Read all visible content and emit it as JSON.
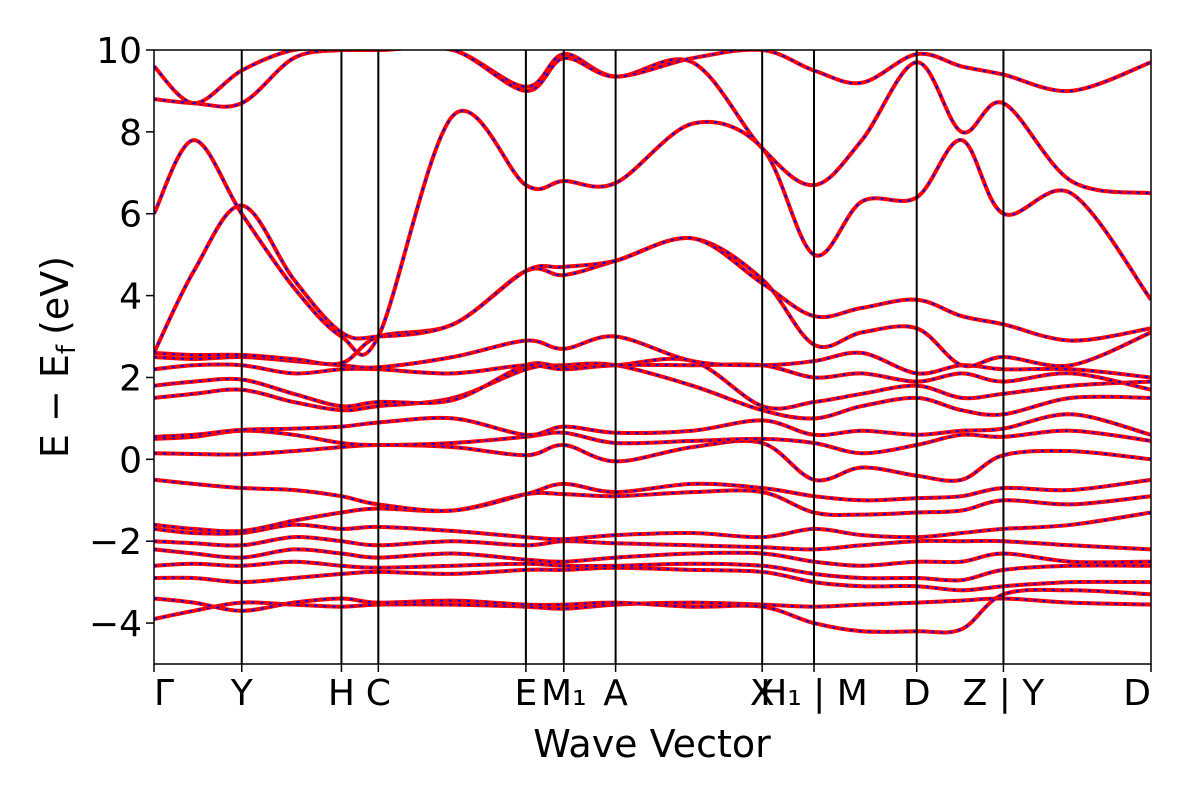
{
  "chart_data": {
    "type": "line",
    "xlabel": "Wave Vector",
    "ylabel": "E − E",
    "ylabel_sub": "f",
    "ylabel_unit": "(eV)",
    "ylim": [
      -5,
      10
    ],
    "yticks": [
      -4,
      -2,
      0,
      2,
      4,
      6,
      8,
      10
    ],
    "ytick_labels": [
      "−4",
      "−2",
      "0",
      "2",
      "4",
      "6",
      "8",
      "10"
    ],
    "xlim": [
      0,
      1
    ],
    "kpoint_labels": [
      {
        "x": 0.0,
        "label": "Γ"
      },
      {
        "x": 0.088,
        "label": "Y"
      },
      {
        "x": 0.188,
        "label": "H"
      },
      {
        "x": 0.225,
        "label": "C"
      },
      {
        "x": 0.373,
        "label": "E"
      },
      {
        "x": 0.411,
        "label": "M₁"
      },
      {
        "x": 0.463,
        "label": "A"
      },
      {
        "x": 0.61,
        "label": "X"
      },
      {
        "x": 0.662,
        "label": "H₁ | M"
      },
      {
        "x": 0.765,
        "label": "D"
      },
      {
        "x": 0.852,
        "label": "Z | Y"
      },
      {
        "x": 1.0,
        "label": "D"
      }
    ],
    "vlines": [
      0.088,
      0.188,
      0.225,
      0.373,
      0.411,
      0.463,
      0.61,
      0.662,
      0.765,
      0.852
    ],
    "grid": false,
    "styles": {
      "line_color": "#ff0000",
      "overlay_color": "#0000ff"
    },
    "bands": [
      {
        "x": [
          0,
          0.04,
          0.088,
          0.14,
          0.188,
          0.225,
          0.3,
          0.373,
          0.411,
          0.463,
          0.54,
          0.61,
          0.662,
          0.71,
          0.765,
          0.81,
          0.852,
          0.92,
          1.0
        ],
        "y": [
          -3.9,
          -3.7,
          -3.5,
          -3.55,
          -3.6,
          -3.55,
          -3.55,
          -3.6,
          -3.65,
          -3.55,
          -3.5,
          -3.55,
          -3.6,
          -3.55,
          -3.5,
          -3.45,
          -3.4,
          -3.5,
          -3.55
        ]
      },
      {
        "x": [
          0,
          0.04,
          0.088,
          0.14,
          0.188,
          0.225,
          0.3,
          0.373,
          0.411,
          0.463,
          0.54,
          0.61,
          0.662,
          0.71,
          0.765,
          0.81,
          0.852,
          0.92,
          1.0
        ],
        "y": [
          -3.4,
          -3.5,
          -3.7,
          -3.5,
          -3.4,
          -3.5,
          -3.45,
          -3.55,
          -3.55,
          -3.5,
          -3.6,
          -3.6,
          -4.0,
          -4.2,
          -4.2,
          -4.15,
          -3.3,
          -3.2,
          -3.3
        ]
      },
      {
        "x": [
          0,
          0.04,
          0.088,
          0.14,
          0.188,
          0.225,
          0.3,
          0.373,
          0.411,
          0.463,
          0.54,
          0.61,
          0.662,
          0.71,
          0.765,
          0.81,
          0.852,
          0.92,
          1.0
        ],
        "y": [
          -2.9,
          -2.9,
          -3.0,
          -2.9,
          -2.8,
          -2.75,
          -2.8,
          -2.7,
          -2.7,
          -2.65,
          -2.7,
          -2.75,
          -3.0,
          -3.1,
          -3.1,
          -3.2,
          -3.1,
          -3.0,
          -3.0
        ]
      },
      {
        "x": [
          0,
          0.04,
          0.088,
          0.14,
          0.188,
          0.225,
          0.3,
          0.373,
          0.411,
          0.463,
          0.54,
          0.61,
          0.662,
          0.71,
          0.765,
          0.81,
          0.852,
          0.92,
          1.0
        ],
        "y": [
          -2.6,
          -2.55,
          -2.6,
          -2.5,
          -2.6,
          -2.65,
          -2.6,
          -2.55,
          -2.6,
          -2.6,
          -2.55,
          -2.6,
          -2.8,
          -2.9,
          -2.9,
          -2.95,
          -2.7,
          -2.6,
          -2.6
        ]
      },
      {
        "x": [
          0,
          0.04,
          0.088,
          0.14,
          0.188,
          0.225,
          0.3,
          0.373,
          0.411,
          0.463,
          0.54,
          0.61,
          0.662,
          0.71,
          0.765,
          0.81,
          0.852,
          0.92,
          1.0
        ],
        "y": [
          -2.2,
          -2.3,
          -2.4,
          -2.2,
          -2.3,
          -2.4,
          -2.3,
          -2.45,
          -2.5,
          -2.4,
          -2.3,
          -2.3,
          -2.5,
          -2.6,
          -2.5,
          -2.5,
          -2.3,
          -2.5,
          -2.5
        ]
      },
      {
        "x": [
          0,
          0.04,
          0.088,
          0.14,
          0.188,
          0.225,
          0.3,
          0.373,
          0.411,
          0.463,
          0.54,
          0.61,
          0.662,
          0.71,
          0.765,
          0.81,
          0.852,
          0.92,
          1.0
        ],
        "y": [
          -2.0,
          -2.05,
          -2.1,
          -1.9,
          -2.0,
          -2.1,
          -2.0,
          -2.1,
          -2.0,
          -2.05,
          -2.1,
          -2.15,
          -2.2,
          -2.1,
          -2.0,
          -2.0,
          -2.0,
          -2.1,
          -2.2
        ]
      },
      {
        "x": [
          0,
          0.04,
          0.088,
          0.14,
          0.188,
          0.225,
          0.3,
          0.373,
          0.411,
          0.463,
          0.54,
          0.61,
          0.662,
          0.71,
          0.765,
          0.81,
          0.852,
          0.92,
          1.0
        ],
        "y": [
          -1.7,
          -1.8,
          -1.8,
          -1.6,
          -1.7,
          -1.65,
          -1.75,
          -1.9,
          -1.95,
          -1.85,
          -1.8,
          -1.9,
          -1.7,
          -1.85,
          -1.9,
          -1.8,
          -1.7,
          -1.6,
          -1.3
        ]
      },
      {
        "x": [
          0,
          0.04,
          0.088,
          0.14,
          0.188,
          0.225,
          0.3,
          0.373,
          0.411,
          0.463,
          0.54,
          0.61,
          0.662,
          0.71,
          0.765,
          0.81,
          0.852,
          0.92,
          1.0
        ],
        "y": [
          -1.6,
          -1.7,
          -1.75,
          -1.5,
          -1.3,
          -1.2,
          -1.25,
          -0.85,
          -0.85,
          -0.9,
          -0.8,
          -0.8,
          -1.3,
          -1.35,
          -1.3,
          -1.25,
          -1.0,
          -1.1,
          -0.9
        ]
      },
      {
        "x": [
          0,
          0.04,
          0.088,
          0.14,
          0.188,
          0.225,
          0.3,
          0.373,
          0.411,
          0.463,
          0.54,
          0.61,
          0.662,
          0.71,
          0.765,
          0.81,
          0.852,
          0.92,
          1.0
        ],
        "y": [
          -0.5,
          -0.6,
          -0.7,
          -0.75,
          -0.9,
          -1.1,
          -1.25,
          -0.85,
          -0.6,
          -0.8,
          -0.6,
          -0.7,
          -0.9,
          -1.0,
          -0.95,
          -0.9,
          -0.7,
          -0.75,
          -0.5
        ]
      },
      {
        "x": [
          0,
          0.04,
          0.088,
          0.14,
          0.188,
          0.225,
          0.3,
          0.373,
          0.411,
          0.463,
          0.54,
          0.61,
          0.662,
          0.71,
          0.765,
          0.81,
          0.852,
          0.92,
          1.0
        ],
        "y": [
          0.15,
          0.13,
          0.12,
          0.2,
          0.3,
          0.35,
          0.3,
          0.1,
          0.35,
          -0.05,
          0.3,
          0.4,
          -0.5,
          -0.2,
          -0.4,
          -0.5,
          0.1,
          0.2,
          0.0
        ]
      },
      {
        "x": [
          0,
          0.04,
          0.088,
          0.14,
          0.188,
          0.225,
          0.3,
          0.373,
          0.411,
          0.463,
          0.54,
          0.61,
          0.662,
          0.71,
          0.765,
          0.81,
          0.852,
          0.92,
          1.0
        ],
        "y": [
          0.5,
          0.55,
          0.7,
          0.6,
          0.4,
          0.35,
          0.4,
          0.55,
          0.65,
          0.4,
          0.45,
          0.5,
          0.4,
          0.15,
          0.35,
          0.6,
          0.55,
          0.7,
          0.45
        ]
      },
      {
        "x": [
          0,
          0.04,
          0.088,
          0.14,
          0.188,
          0.225,
          0.3,
          0.373,
          0.411,
          0.463,
          0.54,
          0.61,
          0.662,
          0.71,
          0.765,
          0.81,
          0.852,
          0.92,
          1.0
        ],
        "y": [
          0.55,
          0.6,
          0.72,
          0.75,
          0.8,
          0.9,
          1.0,
          0.6,
          0.8,
          0.65,
          0.7,
          0.95,
          0.6,
          0.7,
          0.6,
          0.7,
          0.75,
          1.1,
          0.6
        ]
      },
      {
        "x": [
          0,
          0.04,
          0.088,
          0.14,
          0.188,
          0.225,
          0.3,
          0.373,
          0.411,
          0.463,
          0.54,
          0.61,
          0.662,
          0.71,
          0.765,
          0.81,
          0.852,
          0.92,
          1.0
        ],
        "y": [
          1.5,
          1.6,
          1.7,
          1.4,
          1.2,
          1.3,
          1.5,
          2.2,
          2.3,
          2.3,
          1.8,
          1.2,
          1.0,
          1.3,
          1.5,
          1.2,
          1.1,
          1.5,
          1.5
        ]
      },
      {
        "x": [
          0,
          0.04,
          0.088,
          0.14,
          0.188,
          0.225,
          0.3,
          0.373,
          0.411,
          0.463,
          0.54,
          0.61,
          0.662,
          0.71,
          0.765,
          0.81,
          0.852,
          0.92,
          1.0
        ],
        "y": [
          1.8,
          1.9,
          1.95,
          1.6,
          1.3,
          1.4,
          1.45,
          2.3,
          2.25,
          2.3,
          2.4,
          1.3,
          1.4,
          1.6,
          1.8,
          1.5,
          1.6,
          1.8,
          1.9
        ]
      },
      {
        "x": [
          0,
          0.04,
          0.088,
          0.14,
          0.188,
          0.225,
          0.3,
          0.373,
          0.411,
          0.463,
          0.54,
          0.61,
          0.662,
          0.71,
          0.765,
          0.81,
          0.852,
          0.92,
          1.0
        ],
        "y": [
          2.2,
          2.3,
          2.3,
          2.1,
          2.2,
          2.2,
          2.1,
          2.3,
          2.2,
          2.3,
          2.3,
          2.3,
          2.0,
          2.1,
          1.9,
          2.1,
          1.9,
          2.1,
          1.7
        ]
      },
      {
        "x": [
          0,
          0.04,
          0.088,
          0.14,
          0.188,
          0.225,
          0.3,
          0.373,
          0.411,
          0.463,
          0.54,
          0.61,
          0.662,
          0.71,
          0.765,
          0.81,
          0.852,
          0.92,
          1.0
        ],
        "y": [
          2.5,
          2.45,
          2.5,
          2.4,
          2.3,
          2.25,
          2.5,
          2.9,
          2.7,
          3.0,
          2.4,
          2.3,
          2.4,
          2.6,
          2.1,
          2.3,
          2.2,
          2.2,
          2.0
        ]
      },
      {
        "x": [
          0,
          0.04,
          0.088,
          0.14,
          0.188,
          0.225,
          0.3,
          0.373,
          0.411,
          0.463,
          0.54,
          0.61,
          0.662,
          0.71,
          0.765,
          0.81,
          0.852,
          0.92,
          1.0
        ],
        "y": [
          2.6,
          2.55,
          2.55,
          2.45,
          2.35,
          3.0,
          3.3,
          4.6,
          4.5,
          4.85,
          5.4,
          4.4,
          2.8,
          3.1,
          3.2,
          2.3,
          2.5,
          2.3,
          3.1
        ]
      },
      {
        "x": [
          0,
          0.04,
          0.088,
          0.14,
          0.188,
          0.225,
          0.3,
          0.373,
          0.411,
          0.463,
          0.54,
          0.61,
          0.662,
          0.71,
          0.765,
          0.81,
          0.852,
          0.92,
          1.0
        ],
        "y": [
          2.6,
          4.6,
          6.2,
          4.4,
          3.1,
          3.0,
          3.3,
          4.6,
          4.7,
          4.85,
          5.4,
          4.3,
          3.5,
          3.7,
          3.9,
          3.5,
          3.3,
          2.9,
          3.2
        ]
      },
      {
        "x": [
          0,
          0.04,
          0.088,
          0.14,
          0.188,
          0.225,
          0.3,
          0.373,
          0.411,
          0.463,
          0.54,
          0.61,
          0.662,
          0.71,
          0.765,
          0.81,
          0.852,
          0.92,
          1.0
        ],
        "y": [
          6.0,
          7.8,
          6.0,
          4.2,
          3.0,
          3.0,
          8.4,
          6.7,
          6.8,
          6.75,
          8.2,
          7.6,
          5.0,
          6.3,
          6.4,
          7.8,
          6.0,
          6.5,
          3.9
        ]
      },
      {
        "x": [
          0,
          0.04,
          0.088,
          0.14,
          0.188,
          0.225,
          0.3,
          0.373,
          0.411,
          0.463,
          0.54,
          0.61,
          0.662,
          0.71,
          0.765,
          0.81,
          0.852,
          0.92,
          1.0
        ],
        "y": [
          8.8,
          8.7,
          8.7,
          9.8,
          10.0,
          10.0,
          10.0,
          9.1,
          9.9,
          9.35,
          9.7,
          7.6,
          6.7,
          7.8,
          9.7,
          8.0,
          8.7,
          6.8,
          6.5
        ]
      },
      {
        "x": [
          0,
          0.04,
          0.088,
          0.14,
          0.188,
          0.225,
          0.3,
          0.373,
          0.411,
          0.463,
          0.54,
          0.61,
          0.662,
          0.71,
          0.765,
          0.81,
          0.852,
          0.92,
          1.0
        ],
        "y": [
          9.6,
          8.7,
          9.5,
          10.0,
          10.0,
          10.0,
          10.0,
          9.0,
          9.8,
          9.35,
          9.8,
          10.0,
          9.5,
          9.2,
          9.9,
          9.6,
          9.4,
          9.0,
          9.7
        ]
      }
    ]
  }
}
